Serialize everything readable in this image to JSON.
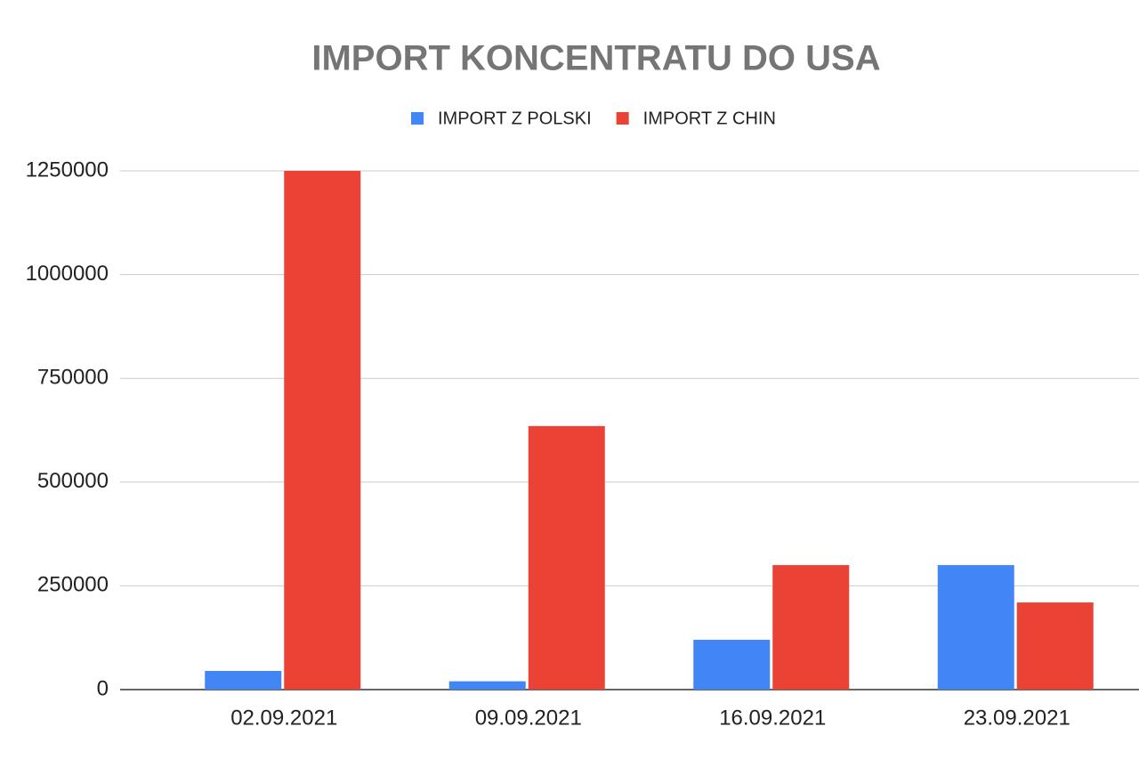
{
  "chart_data": {
    "type": "bar",
    "title": "IMPORT KONCENTRATU DO USA",
    "categories": [
      "02.09.2021",
      "09.09.2021",
      "16.09.2021",
      "23.09.2021"
    ],
    "series": [
      {
        "name": "IMPORT Z POLSKI",
        "color": "#4285f4",
        "values": [
          45000,
          20000,
          120000,
          300000
        ]
      },
      {
        "name": "IMPORT Z CHIN",
        "color": "#ea4335",
        "values": [
          1250000,
          635000,
          300000,
          210000
        ]
      }
    ],
    "ylim": [
      0,
      1250000
    ],
    "yticks": [
      0,
      250000,
      500000,
      750000,
      1000000,
      1250000
    ],
    "grid": true,
    "legend": "top"
  }
}
